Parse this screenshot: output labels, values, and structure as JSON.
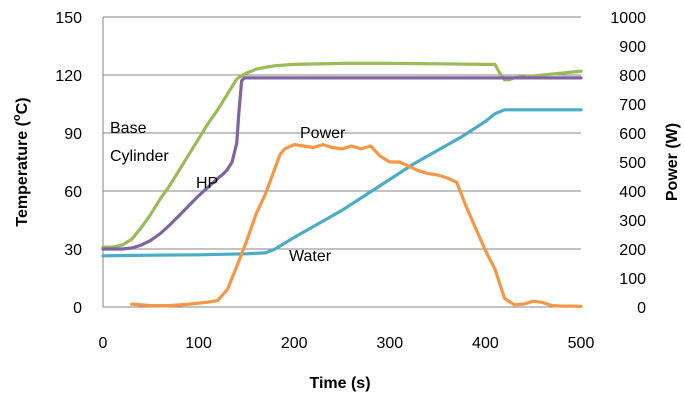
{
  "chart_data": {
    "type": "line",
    "xlabel": "Time (s)",
    "ylabel_left": "Temperature (",
    "ylabel_left_sup": "o",
    "ylabel_left_end": "C)",
    "ylabel_right": "Power (W)",
    "xlim": [
      0,
      500
    ],
    "ylim_left": [
      0,
      150
    ],
    "ylim_right": [
      0,
      1000
    ],
    "x_ticks": [
      "0",
      "100",
      "200",
      "300",
      "400",
      "500"
    ],
    "y_left_ticks": [
      "0",
      "30",
      "60",
      "90",
      "120",
      "150"
    ],
    "y_right_ticks": [
      "0",
      "100",
      "200",
      "300",
      "400",
      "500",
      "600",
      "700",
      "800",
      "900",
      "1000"
    ],
    "grid": "horizontal",
    "annotations": {
      "base": "Base",
      "cylinder": "Cylinder",
      "hp": "HP",
      "power": "Power",
      "water": "Water"
    },
    "series": [
      {
        "key": "base_cylinder",
        "color": "#9bbb59",
        "axis": "left",
        "x": [
          0,
          10,
          20,
          30,
          40,
          50,
          60,
          70,
          80,
          90,
          100,
          110,
          120,
          130,
          140,
          150,
          160,
          170,
          180,
          200,
          250,
          300,
          350,
          400,
          410,
          415,
          420,
          425,
          430,
          450,
          480,
          500
        ],
        "y": [
          31,
          31,
          32,
          35,
          41,
          48,
          56,
          63,
          71,
          79,
          87,
          95,
          102,
          110,
          118,
          121,
          123,
          124,
          124.8,
          125.5,
          126,
          126,
          125.8,
          125.5,
          125.5,
          121,
          117.5,
          117.5,
          118.5,
          119.5,
          121,
          122
        ]
      },
      {
        "key": "hp",
        "color": "#8064a2",
        "axis": "left",
        "x": [
          0,
          20,
          30,
          40,
          50,
          60,
          70,
          80,
          90,
          100,
          110,
          120,
          125,
          130,
          135,
          140,
          142,
          145,
          148,
          150,
          200,
          250,
          300,
          350,
          400,
          420,
          430,
          450,
          500
        ],
        "y": [
          30,
          30,
          30.5,
          32,
          34.5,
          38,
          42.5,
          47.5,
          52.5,
          57.5,
          62,
          66.5,
          68.5,
          71,
          75,
          85,
          100,
          117,
          118.5,
          118.5,
          118.5,
          118.5,
          118.5,
          118.5,
          118.5,
          118.5,
          118.5,
          118.5,
          118.5
        ]
      },
      {
        "key": "water",
        "color": "#4bacc6",
        "axis": "left",
        "x": [
          0,
          50,
          100,
          150,
          160,
          170,
          180,
          200,
          225,
          250,
          275,
          300,
          325,
          350,
          375,
          400,
          410,
          420,
          450,
          500
        ],
        "y": [
          26.5,
          26.8,
          27,
          27.5,
          27.8,
          28,
          30,
          36,
          43,
          50,
          58,
          66,
          74,
          81,
          88,
          96,
          100,
          102,
          102,
          102
        ]
      },
      {
        "key": "power",
        "color": "#f79646",
        "axis": "right",
        "x": [
          30,
          50,
          70,
          90,
          110,
          120,
          130,
          140,
          150,
          160,
          170,
          180,
          185,
          190,
          200,
          210,
          220,
          230,
          240,
          250,
          260,
          270,
          280,
          290,
          300,
          310,
          320,
          330,
          340,
          350,
          360,
          370,
          380,
          390,
          400,
          410,
          420,
          430,
          440,
          450,
          460,
          470,
          480,
          490,
          500
        ],
        "y": [
          10,
          5,
          5,
          10,
          17,
          22,
          60,
          140,
          225,
          320,
          390,
          480,
          525,
          545,
          560,
          555,
          550,
          560,
          550,
          545,
          555,
          545,
          555,
          520,
          500,
          500,
          485,
          470,
          460,
          455,
          445,
          430,
          345,
          270,
          195,
          130,
          30,
          8,
          10,
          20,
          15,
          5,
          3,
          3,
          2
        ]
      }
    ]
  }
}
